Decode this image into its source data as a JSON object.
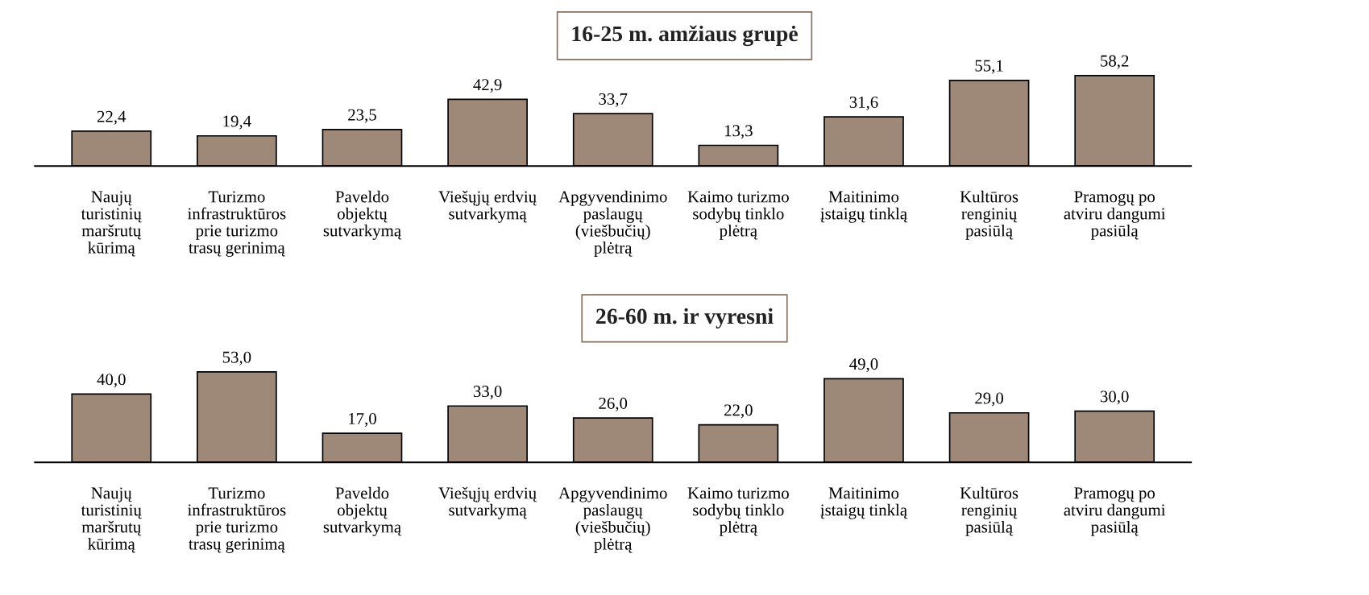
{
  "chart_data": [
    {
      "type": "bar",
      "title": "16-25 m. amžiaus grupė",
      "categories": [
        "Naujų\nturistinių\nmaršrutų\nkūrimą",
        "Turizmo\ninfrastruktūros\nprie turizmo\ntrasų gerinimą",
        "Paveldo\nobjektų\nsutvarkymą",
        "Viešųjų erdvių\nsutvarkymą",
        "Apgyvendinimo\npaslaugų\n(viešbučių)\nplėtrą",
        "Kaimo turizmo\nsodybų tinklo\nplėtrą",
        "Maitinimo\nįstaigų tinklą",
        "Kultūros\nrenginių\npasiūlą",
        "Pramogų po\natviru dangumi\npasiūlą"
      ],
      "values": [
        22.4,
        19.4,
        23.5,
        42.9,
        33.7,
        13.3,
        31.6,
        55.1,
        58.2
      ],
      "value_labels": [
        "22,4",
        "19,4",
        "23,5",
        "42,9",
        "33,7",
        "13,3",
        "31,6",
        "55,1",
        "58,2"
      ],
      "color": "#9e8878",
      "grid": false,
      "legend": false
    },
    {
      "type": "bar",
      "title": "26-60 m. ir vyresni",
      "categories": [
        "Naujų\nturistinių\nmaršrutų\nkūrimą",
        "Turizmo\ninfrastruktūros\nprie turizmo\ntrasų gerinimą",
        "Paveldo\nobjektų\nsutvarkymą",
        "Viešųjų erdvių\nsutvarkymą",
        "Apgyvendinimo\npaslaugų\n(viešbučių)\nplėtrą",
        "Kaimo turizmo\nsodybų tinklo\nplėtrą",
        "Maitinimo\nįstaigų tinklą",
        "Kultūros\nrenginių\npasiūlą",
        "Pramogų po\natviru dangumi\npasiūlą"
      ],
      "values": [
        40.0,
        53.0,
        17.0,
        33.0,
        26.0,
        22.0,
        49.0,
        29.0,
        30.0
      ],
      "value_labels": [
        "40,0",
        "53,0",
        "17,0",
        "33,0",
        "26,0",
        "22,0",
        "49,0",
        "29,0",
        "30,0"
      ],
      "color": "#9e8878",
      "grid": false,
      "legend": false
    }
  ]
}
